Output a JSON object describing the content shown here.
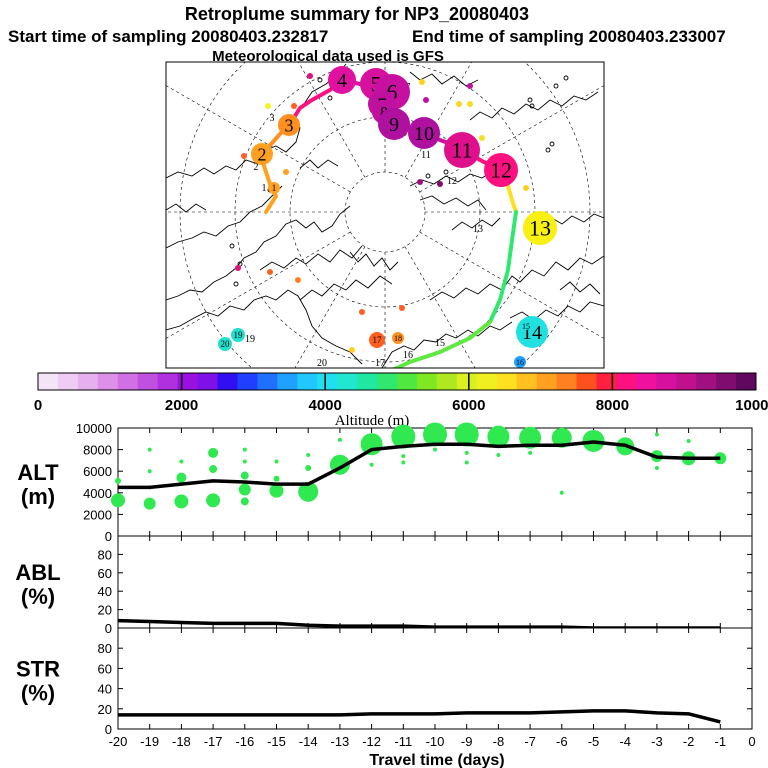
{
  "title": "Retroplume summary for NP3_20080403",
  "start_time": "Start time of sampling 20080403.232817",
  "end_time": "End time of sampling 20080403.233007",
  "met_data": "Meteorological data used is GFS",
  "colorbar": {
    "label": "Altitude (m)",
    "ticks": [
      "0",
      "2000",
      "4000",
      "6000",
      "8000",
      "10000"
    ],
    "colors": [
      "#f4e4f8",
      "#eeccf4",
      "#e6b0ee",
      "#dc90e8",
      "#d070e4",
      "#c050e0",
      "#b030e0",
      "#9a10e0",
      "#8010e8",
      "#3010f0",
      "#2040ff",
      "#2070ff",
      "#20a0ff",
      "#20c8ff",
      "#20e0f0",
      "#20e8d0",
      "#20e8a0",
      "#30e870",
      "#50e840",
      "#80e820",
      "#b0e820",
      "#d8f020",
      "#f0f020",
      "#ffe020",
      "#ffc020",
      "#ffa020",
      "#ff8020",
      "#ff5020",
      "#ff2040",
      "#ff1080",
      "#f010a0",
      "#d810a0",
      "#c0108c",
      "#a01080",
      "#800c70",
      "#600860"
    ]
  },
  "map": {
    "label_numbers": [
      "1",
      "2",
      "3",
      "4",
      "5",
      "6",
      "7",
      "8",
      "9",
      "10",
      "11",
      "12",
      "13",
      "14",
      "15",
      "16",
      "17",
      "18",
      "19",
      "20"
    ],
    "clusters": [
      {
        "label": "1",
        "color": "#ffa020"
      },
      {
        "label": "2",
        "color": "#ffa020"
      },
      {
        "label": "3",
        "color": "#ff9020"
      },
      {
        "label": "4",
        "color": "#e010a0"
      },
      {
        "label": "5",
        "color": "#d810a0"
      },
      {
        "label": "6",
        "color": "#c810a0"
      },
      {
        "label": "7",
        "color": "#c010a0"
      },
      {
        "label": "8",
        "color": "#c010a0"
      },
      {
        "label": "9",
        "color": "#b010a0"
      },
      {
        "label": "10",
        "color": "#b010a0"
      },
      {
        "label": "11",
        "color": "#e0108c"
      },
      {
        "label": "12",
        "color": "#ff1080"
      },
      {
        "label": "13",
        "color": "#f8f010"
      },
      {
        "label": "14",
        "color": "#20e0e0"
      },
      {
        "label": "15",
        "color": "#20e0e0"
      },
      {
        "label": "16",
        "color": "#20a0ff"
      },
      {
        "label": "17",
        "color": "#ff6020"
      },
      {
        "label": "18",
        "color": "#ff9020"
      },
      {
        "label": "19",
        "color": "#20e0d0"
      },
      {
        "label": "20",
        "color": "#20e0d0"
      }
    ]
  },
  "chart_data": [
    {
      "type": "line",
      "ylabel_lines": [
        "ALT",
        "(m)"
      ],
      "x": [
        -20,
        -19,
        -18,
        -17,
        -16,
        -15,
        -14,
        -13,
        -12,
        -11,
        -10,
        -9,
        -8,
        -7,
        -6,
        -5,
        -4,
        -3,
        -2,
        -1
      ],
      "values": [
        4500,
        4500,
        4800,
        5100,
        5000,
        4800,
        4800,
        6300,
        8000,
        8300,
        8500,
        8500,
        8300,
        8400,
        8400,
        8700,
        8400,
        7300,
        7200,
        7200
      ],
      "xlim": [
        -20,
        0
      ],
      "ylim": [
        0,
        10000
      ],
      "yticks": [
        "0",
        "2000",
        "4000",
        "6000",
        "8000",
        "10000"
      ],
      "clusters": [
        {
          "x": -20,
          "y": 3300,
          "r": 7
        },
        {
          "x": -20,
          "y": 5100,
          "r": 3
        },
        {
          "x": -19,
          "y": 3000,
          "r": 6
        },
        {
          "x": -19,
          "y": 4500,
          "r": 2
        },
        {
          "x": -19,
          "y": 6000,
          "r": 2
        },
        {
          "x": -19,
          "y": 8000,
          "r": 2
        },
        {
          "x": -18,
          "y": 3200,
          "r": 7
        },
        {
          "x": -18,
          "y": 5400,
          "r": 5
        },
        {
          "x": -18,
          "y": 6900,
          "r": 2
        },
        {
          "x": -17,
          "y": 3300,
          "r": 7
        },
        {
          "x": -17,
          "y": 6200,
          "r": 4
        },
        {
          "x": -17,
          "y": 7700,
          "r": 5
        },
        {
          "x": -16,
          "y": 3200,
          "r": 4
        },
        {
          "x": -16,
          "y": 4300,
          "r": 6
        },
        {
          "x": -16,
          "y": 5600,
          "r": 4
        },
        {
          "x": -16,
          "y": 6900,
          "r": 2
        },
        {
          "x": -16,
          "y": 8000,
          "r": 2
        },
        {
          "x": -15,
          "y": 4200,
          "r": 7
        },
        {
          "x": -15,
          "y": 5300,
          "r": 3
        },
        {
          "x": -15,
          "y": 6900,
          "r": 2
        },
        {
          "x": -14,
          "y": 4100,
          "r": 10
        },
        {
          "x": -14,
          "y": 6300,
          "r": 3
        },
        {
          "x": -14,
          "y": 7500,
          "r": 2
        },
        {
          "x": -13,
          "y": 6600,
          "r": 10
        },
        {
          "x": -13,
          "y": 8900,
          "r": 2
        },
        {
          "x": -12,
          "y": 6600,
          "r": 2
        },
        {
          "x": -12,
          "y": 8500,
          "r": 11
        },
        {
          "x": -11,
          "y": 6800,
          "r": 2
        },
        {
          "x": -11,
          "y": 9200,
          "r": 12
        },
        {
          "x": -11,
          "y": 7400,
          "r": 2
        },
        {
          "x": -10,
          "y": 9400,
          "r": 12
        },
        {
          "x": -10,
          "y": 8000,
          "r": 2
        },
        {
          "x": -9,
          "y": 6800,
          "r": 2
        },
        {
          "x": -9,
          "y": 9400,
          "r": 12
        },
        {
          "x": -9,
          "y": 7700,
          "r": 2
        },
        {
          "x": -8,
          "y": 9200,
          "r": 11
        },
        {
          "x": -8,
          "y": 7500,
          "r": 2
        },
        {
          "x": -7,
          "y": 9100,
          "r": 11
        },
        {
          "x": -7,
          "y": 7700,
          "r": 2
        },
        {
          "x": -6,
          "y": 4000,
          "r": 2
        },
        {
          "x": -6,
          "y": 9100,
          "r": 10
        },
        {
          "x": -5,
          "y": 8800,
          "r": 11
        },
        {
          "x": -4,
          "y": 8300,
          "r": 9
        },
        {
          "x": -3,
          "y": 6300,
          "r": 2
        },
        {
          "x": -3,
          "y": 7400,
          "r": 6
        },
        {
          "x": -3,
          "y": 9400,
          "r": 2
        },
        {
          "x": -2,
          "y": 7200,
          "r": 7
        },
        {
          "x": -2,
          "y": 8800,
          "r": 2
        },
        {
          "x": -1,
          "y": 7200,
          "r": 6
        }
      ]
    },
    {
      "type": "line",
      "ylabel_lines": [
        "ABL",
        "(%)"
      ],
      "x": [
        -20,
        -19,
        -18,
        -17,
        -16,
        -15,
        -14,
        -13,
        -12,
        -11,
        -10,
        -9,
        -8,
        -7,
        -6,
        -5,
        -4,
        -3,
        -2,
        -1
      ],
      "values": [
        8,
        7,
        6,
        5,
        5,
        5,
        3,
        2,
        2,
        2,
        1,
        1,
        1,
        1,
        1,
        0,
        0,
        0,
        0,
        0
      ],
      "xlim": [
        -20,
        0
      ],
      "ylim": [
        0,
        100
      ],
      "yticks": [
        "0",
        "20",
        "40",
        "60",
        "80"
      ]
    },
    {
      "type": "line",
      "ylabel_lines": [
        "STR",
        "(%)"
      ],
      "x": [
        -20,
        -19,
        -18,
        -17,
        -16,
        -15,
        -14,
        -13,
        -12,
        -11,
        -10,
        -9,
        -8,
        -7,
        -6,
        -5,
        -4,
        -3,
        -2,
        -1
      ],
      "values": [
        14,
        14,
        14,
        14,
        14,
        14,
        14,
        14,
        15,
        15,
        15,
        16,
        16,
        16,
        17,
        18,
        18,
        16,
        15,
        7
      ],
      "xlim": [
        -20,
        0
      ],
      "ylim": [
        0,
        100
      ],
      "yticks": [
        "0",
        "20",
        "40",
        "60",
        "80"
      ],
      "xticks": [
        "-20",
        "-19",
        "-18",
        "-17",
        "-16",
        "-15",
        "-14",
        "-13",
        "-12",
        "-11",
        "-10",
        "-9",
        "-8",
        "-7",
        "-6",
        "-5",
        "-4",
        "-3",
        "-2",
        "-1",
        "0"
      ],
      "xlabel": "Travel time (days)"
    }
  ]
}
